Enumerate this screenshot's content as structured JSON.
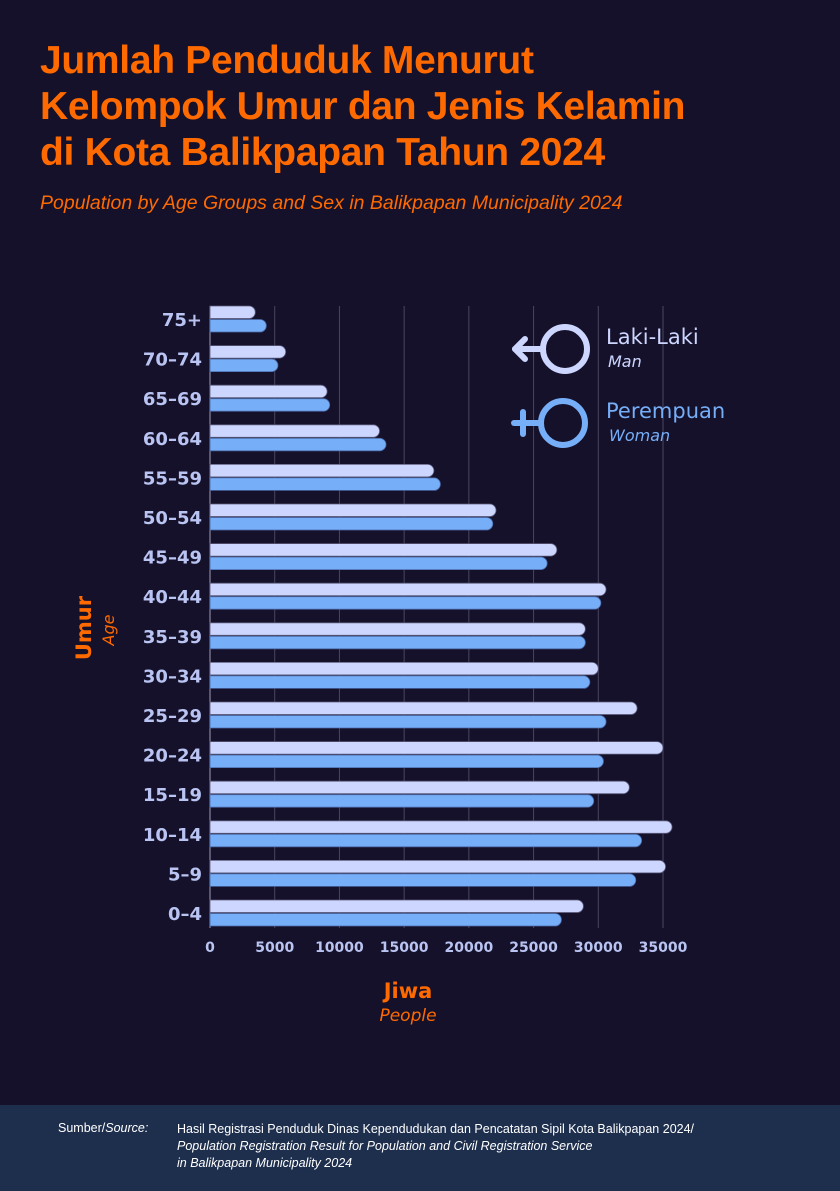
{
  "header": {
    "title_lines": [
      "Jumlah Penduduk Menurut",
      "Kelompok Umur dan Jenis Kelamin",
      "di Kota Balikpapan Tahun 2024"
    ],
    "subtitle": "Population by Age Groups and Sex in Balikpapan Municipality 2024"
  },
  "colors": {
    "background": "#15112a",
    "accent": "#ff6a00",
    "male": "#cdd6ff",
    "female": "#76aef8",
    "tick_label": "#b9c4f2",
    "gridline": "#4a4660",
    "footer_bg": "#1e2f4e"
  },
  "chart_data": {
    "type": "bar",
    "orientation": "horizontal",
    "title": "Jumlah Penduduk Menurut Kelompok Umur dan Jenis Kelamin di Kota Balikpapan Tahun 2024",
    "subtitle": "Population by Age Groups and Sex in Balikpapan Municipality 2024",
    "categories": [
      "75+",
      "70–74",
      "65–69",
      "60–64",
      "55–59",
      "50–54",
      "45–49",
      "40–44",
      "35–39",
      "30–34",
      "25–29",
      "20–24",
      "15–19",
      "10–14",
      "5–9",
      "0–4"
    ],
    "series": [
      {
        "name": "Laki-Laki",
        "name_en": "Man",
        "icon": "male-symbol-icon",
        "values": [
          3500,
          5850,
          9050,
          13100,
          17300,
          22100,
          26800,
          30600,
          29000,
          30000,
          33000,
          35000,
          32400,
          35700,
          35200,
          28850
        ]
      },
      {
        "name": "Perempuan",
        "name_en": "Woman",
        "icon": "female-symbol-icon",
        "values": [
          4350,
          5250,
          9250,
          13600,
          17800,
          21850,
          26050,
          30200,
          29000,
          29350,
          30600,
          30400,
          29650,
          33350,
          32900,
          27150
        ]
      }
    ],
    "xlabel": "Jiwa",
    "xlabel_en": "People",
    "ylabel": "Umur",
    "ylabel_en": "Age",
    "xlim": [
      0,
      35000
    ],
    "xticks": [
      0,
      5000,
      10000,
      15000,
      20000,
      25000,
      30000,
      35000
    ],
    "xtick_labels": [
      "0",
      "5000",
      "10000",
      "15000",
      "20000",
      "25000",
      "30000",
      "35000"
    ],
    "grid": "vertical",
    "legend_position": "top-right"
  },
  "footer": {
    "source_label": "Sumber/",
    "source_label_en": "Source:",
    "source_id": "Hasil Registrasi Penduduk Dinas Kependudukan dan Pencatatan Sipil Kota Balikpapan 2024/",
    "source_en_line1": "Population Registration Result for Population and Civil Registration Service",
    "source_en_line2": "in Balikpapan Municipality 2024"
  }
}
